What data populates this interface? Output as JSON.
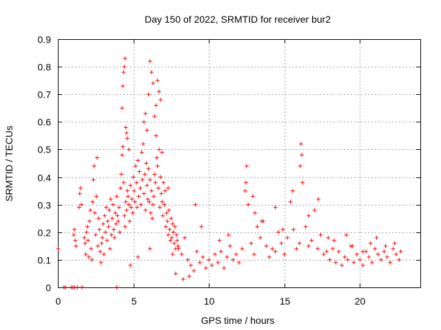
{
  "chart_data": {
    "type": "scatter",
    "title": "Day 150 of 2022, SRMTID for receiver bur2",
    "xlabel": "GPS time / hours",
    "ylabel": "SRMTID / TECUs",
    "xlim": [
      0,
      24
    ],
    "ylim": [
      0,
      0.9
    ],
    "xticks": [
      0,
      5,
      10,
      15,
      20
    ],
    "xtick_labels": [
      "0",
      "5",
      "10",
      "15",
      "20"
    ],
    "yticks": [
      0,
      0.1,
      0.2,
      0.3,
      0.4,
      0.5,
      0.6,
      0.7,
      0.8,
      0.9
    ],
    "ytick_labels": [
      "0",
      "0.1",
      "0.2",
      "0.3",
      "0.4",
      "0.5",
      "0.6",
      "0.7",
      "0.8",
      "0.9"
    ],
    "grid": true,
    "marker": "+",
    "marker_color": "#ff0000",
    "series": [
      {
        "name": "SRMTID",
        "x": [
          0.02,
          0.4,
          0.5,
          0.9,
          1.0,
          1.1,
          1.3,
          1.6,
          3.9,
          1.05,
          1.1,
          1.15,
          1.2,
          1.4,
          1.45,
          1.5,
          1.55,
          1.75,
          1.8,
          1.85,
          1.9,
          1.95,
          2.0,
          2.05,
          2.1,
          2.15,
          2.2,
          2.25,
          2.3,
          2.35,
          2.4,
          2.45,
          2.5,
          2.55,
          2.6,
          2.65,
          2.7,
          2.75,
          2.8,
          2.85,
          2.9,
          2.95,
          3.0,
          3.05,
          3.1,
          3.15,
          3.2,
          3.25,
          3.3,
          3.35,
          3.4,
          3.45,
          3.5,
          3.55,
          3.6,
          3.65,
          3.7,
          3.75,
          3.8,
          3.85,
          3.9,
          3.95,
          4.0,
          4.05,
          4.1,
          4.15,
          4.2,
          4.25,
          4.3,
          4.35,
          4.4,
          4.45,
          4.5,
          4.55,
          4.6,
          4.65,
          4.7,
          4.75,
          4.8,
          4.85,
          4.9,
          4.95,
          5.0,
          5.05,
          5.1,
          5.15,
          5.2,
          5.25,
          5.3,
          5.35,
          5.4,
          5.45,
          5.5,
          5.55,
          5.6,
          5.65,
          5.7,
          5.75,
          5.8,
          5.85,
          5.9,
          5.95,
          6.0,
          6.05,
          6.1,
          6.15,
          6.2,
          6.25,
          6.3,
          6.35,
          6.4,
          6.45,
          6.5,
          6.55,
          6.6,
          6.65,
          6.7,
          6.75,
          6.8,
          6.85,
          6.9,
          6.95,
          7.0,
          7.05,
          7.1,
          7.15,
          7.2,
          7.25,
          7.3,
          7.35,
          7.4,
          7.45,
          7.5,
          7.55,
          7.6,
          7.65,
          7.7,
          7.75,
          7.8,
          7.85,
          7.9,
          7.95,
          4.25,
          4.3,
          4.35,
          4.4,
          4.45,
          4.5,
          4.55,
          4.6,
          4.7,
          5.7,
          5.8,
          5.9,
          6.0,
          6.1,
          6.2,
          6.3,
          6.4,
          6.5,
          6.6,
          6.7,
          6.8,
          8.0,
          8.2,
          8.4,
          8.6,
          8.8,
          9.0,
          9.2,
          9.4,
          9.6,
          9.8,
          10.0,
          10.2,
          10.4,
          10.6,
          10.8,
          11.0,
          11.2,
          11.4,
          11.6,
          11.8,
          12.0,
          12.2,
          12.4,
          12.5,
          12.6,
          12.8,
          13.0,
          13.2,
          13.4,
          13.6,
          13.8,
          14.0,
          14.2,
          14.4,
          14.6,
          14.8,
          15.0,
          15.2,
          15.4,
          15.6,
          15.8,
          16.0,
          16.05,
          16.1,
          16.2,
          16.4,
          16.6,
          16.8,
          17.0,
          17.2,
          17.4,
          17.6,
          17.8,
          18.0,
          18.2,
          18.4,
          18.6,
          18.8,
          19.0,
          19.2,
          19.4,
          19.6,
          19.8,
          20.0,
          20.2,
          20.4,
          20.6,
          20.8,
          21.0,
          21.2,
          21.4,
          21.6,
          21.8,
          22.0,
          22.2,
          22.4,
          22.6,
          22.7,
          9.1,
          11.3,
          12.45,
          13.05,
          14.4,
          15.55,
          16.15,
          17.25,
          18.3,
          19.5,
          20.2,
          21.1,
          22.3,
          9.5,
          10.7,
          12.9,
          13.5,
          14.9,
          16.6,
          17.9,
          19.1,
          20.7,
          21.7,
          4.8,
          5.3,
          6.1,
          6.9,
          7.3,
          7.6,
          7.8,
          8.3,
          8.7
        ],
        "y": [
          0.14,
          0,
          0,
          0,
          0,
          0,
          0,
          0,
          0,
          0.19,
          0.21,
          0.17,
          0.15,
          0.29,
          0.34,
          0.36,
          0.3,
          0.18,
          0.16,
          0.12,
          0.2,
          0.22,
          0.17,
          0.11,
          0.24,
          0.28,
          0.14,
          0.1,
          0.31,
          0.39,
          0.44,
          0.27,
          0.19,
          0.33,
          0.47,
          0.15,
          0.25,
          0.21,
          0.13,
          0.09,
          0.16,
          0.18,
          0.23,
          0.12,
          0.26,
          0.2,
          0.29,
          0.17,
          0.24,
          0.22,
          0.28,
          0.14,
          0.32,
          0.19,
          0.25,
          0.3,
          0.21,
          0.18,
          0.27,
          0.23,
          0.33,
          0.26,
          0.24,
          0.29,
          0.2,
          0.36,
          0.41,
          0.48,
          0.51,
          0.38,
          0.26,
          0.22,
          0.31,
          0.28,
          0.35,
          0.33,
          0.3,
          0.24,
          0.37,
          0.29,
          0.32,
          0.27,
          0.4,
          0.35,
          0.31,
          0.44,
          0.38,
          0.29,
          0.46,
          0.33,
          0.42,
          0.36,
          0.3,
          0.49,
          0.39,
          0.52,
          0.34,
          0.41,
          0.28,
          0.45,
          0.37,
          0.32,
          0.43,
          0.31,
          0.39,
          0.27,
          0.35,
          0.25,
          0.3,
          0.33,
          0.41,
          0.38,
          0.55,
          0.47,
          0.44,
          0.36,
          0.5,
          0.29,
          0.4,
          0.34,
          0.31,
          0.26,
          0.38,
          0.3,
          0.35,
          0.22,
          0.27,
          0.24,
          0.19,
          0.28,
          0.21,
          0.17,
          0.25,
          0.18,
          0.23,
          0.2,
          0.16,
          0.22,
          0.14,
          0.19,
          0.17,
          0.15,
          0.65,
          0.73,
          0.78,
          0.8,
          0.83,
          0.58,
          0.56,
          0.54,
          0.5,
          0.6,
          0.63,
          0.57,
          0.7,
          0.82,
          0.78,
          0.74,
          0.62,
          0.66,
          0.75,
          0.71,
          0.68,
          0.14,
          0.12,
          0.18,
          0.1,
          0.08,
          0.06,
          0.13,
          0.09,
          0.11,
          0.07,
          0.1,
          0.08,
          0.12,
          0.09,
          0.13,
          0.07,
          0.11,
          0.15,
          0.1,
          0.12,
          0.09,
          0.14,
          0.35,
          0.44,
          0.3,
          0.16,
          0.12,
          0.22,
          0.18,
          0.24,
          0.15,
          0.11,
          0.14,
          0.13,
          0.2,
          0.16,
          0.12,
          0.18,
          0.31,
          0.21,
          0.14,
          0.16,
          0.44,
          0.52,
          0.38,
          0.22,
          0.15,
          0.17,
          0.28,
          0.14,
          0.19,
          0.12,
          0.13,
          0.1,
          0.14,
          0.09,
          0.13,
          0.08,
          0.11,
          0.1,
          0.15,
          0.09,
          0.12,
          0.1,
          0.08,
          0.13,
          0.11,
          0.09,
          0.14,
          0.12,
          0.1,
          0.13,
          0.11,
          0.09,
          0.14,
          0.12,
          0.1,
          0.13,
          0.3,
          0.19,
          0.38,
          0.27,
          0.29,
          0.35,
          0.48,
          0.32,
          0.17,
          0.15,
          0.13,
          0.18,
          0.16,
          0.22,
          0.17,
          0.33,
          0.24,
          0.21,
          0.26,
          0.18,
          0.19,
          0.16,
          0.15,
          0.08,
          0.11,
          0.14,
          0.49,
          0.36,
          0.12,
          0.05,
          0.03,
          0.04
        ]
      }
    ]
  }
}
